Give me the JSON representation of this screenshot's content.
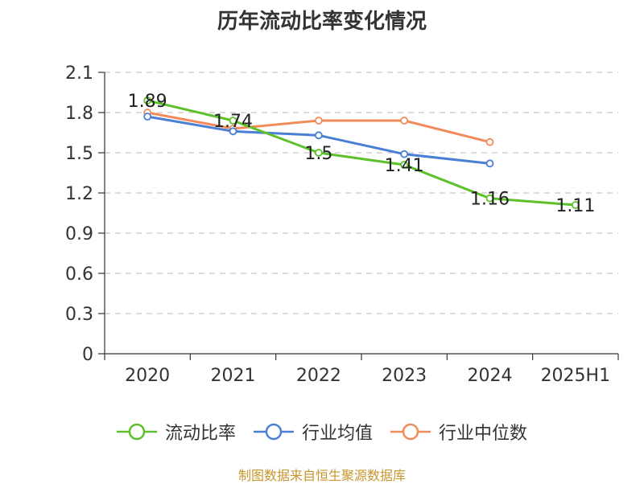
{
  "chart_data": {
    "type": "line",
    "title": "历年流动比率变化情况",
    "categories": [
      "2020",
      "2021",
      "2022",
      "2023",
      "2024",
      "2025H1"
    ],
    "ylim": [
      0,
      2.1
    ],
    "yticks": [
      "0",
      "0.3",
      "0.6",
      "0.9",
      "1.2",
      "1.5",
      "1.8",
      "2.1"
    ],
    "grid": true,
    "legend_position": "bottom",
    "series": [
      {
        "name": "流动比率",
        "color": "#5cc12a",
        "values": [
          1.89,
          1.74,
          1.5,
          1.41,
          1.16,
          1.11
        ],
        "labels": [
          "1.89",
          "1.74",
          "1.5",
          "1.41",
          "1.16",
          "1.11"
        ]
      },
      {
        "name": "行业均值",
        "color": "#4a7fd6",
        "values": [
          1.77,
          1.66,
          1.63,
          1.49,
          1.42,
          null
        ]
      },
      {
        "name": "行业中位数",
        "color": "#f28b5a",
        "values": [
          1.8,
          1.68,
          1.74,
          1.74,
          1.58,
          null
        ]
      }
    ]
  },
  "source_note": "制图数据来自恒生聚源数据库"
}
